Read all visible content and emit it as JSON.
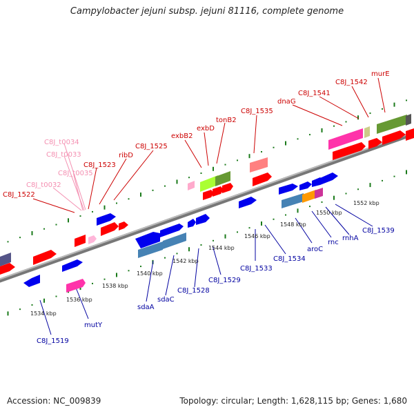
{
  "title": "Campylobacter jejuni subsp. jejuni 81116, complete genome",
  "footer": {
    "accession": "Accession: NC_009839",
    "summary": "Topology: circular; Length: 1,628,115 bp; Genes: 1,680"
  },
  "colors": {
    "plus_strand_gene": "#ff0000",
    "minus_strand_gene": "#0000ee",
    "trna": "#ffb6c1",
    "tick_plus": "#1a7a1a",
    "axis": "#999999",
    "label_red": "#cc0000",
    "label_blue": "#0000a0"
  },
  "kbp_ticks": [
    "1534 kbp",
    "1536 kbp",
    "1538 kbp",
    "1540 kbp",
    "1542 kbp",
    "1544 kbp",
    "1546 kbp",
    "1548 kbp",
    "1550 kbp",
    "1552 kbp"
  ],
  "labels_top": [
    {
      "text": "C8J_1522",
      "kind": "red"
    },
    {
      "text": "C8J_t0032",
      "kind": "pink"
    },
    {
      "text": "C8J_t0035",
      "kind": "pink"
    },
    {
      "text": "C8J_t0033",
      "kind": "pink"
    },
    {
      "text": "C8J_t0034",
      "kind": "pink"
    },
    {
      "text": "C8J_1523",
      "kind": "red"
    },
    {
      "text": "ribD",
      "kind": "red"
    },
    {
      "text": "C8J_1525",
      "kind": "red"
    },
    {
      "text": "exbB2",
      "kind": "red"
    },
    {
      "text": "exbD",
      "kind": "red"
    },
    {
      "text": "tonB2",
      "kind": "red"
    },
    {
      "text": "C8J_1535",
      "kind": "red"
    },
    {
      "text": "dnaG",
      "kind": "red"
    },
    {
      "text": "C8J_1541",
      "kind": "red"
    },
    {
      "text": "C8J_1542",
      "kind": "red"
    },
    {
      "text": "murE",
      "kind": "red"
    }
  ],
  "labels_bottom": [
    {
      "text": "C8J_1519"
    },
    {
      "text": "mutY"
    },
    {
      "text": "sdaA"
    },
    {
      "text": "sdaC"
    },
    {
      "text": "C8J_1528"
    },
    {
      "text": "C8J_1529"
    },
    {
      "text": "C8J_1533"
    },
    {
      "text": "C8J_1534"
    },
    {
      "text": "aroC"
    },
    {
      "text": "rnc"
    },
    {
      "text": "rnhA"
    },
    {
      "text": "C8J_1539"
    }
  ]
}
